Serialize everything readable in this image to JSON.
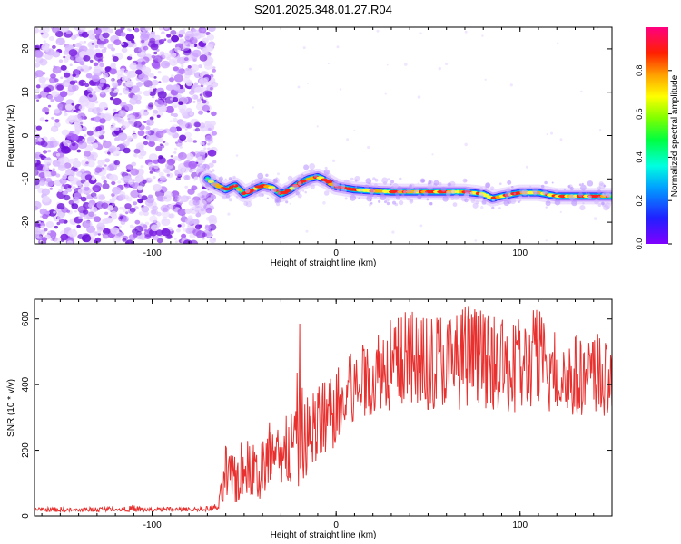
{
  "title": "S201.2025.348.01.27.R04",
  "colors": {
    "snr_line": "#e8312f",
    "ridge_core": "#ff1a1a",
    "noise": "#7a1fe0"
  },
  "chart_data": [
    {
      "type": "heatmap",
      "xlabel": "Height of straight line (km)",
      "ylabel": "Frequency (Hz)",
      "xlim": [
        -164,
        150
      ],
      "ylim": [
        -25,
        25
      ],
      "x_ticks": [
        -100,
        0,
        100
      ],
      "y_ticks": [
        -20,
        -10,
        0,
        10,
        20
      ],
      "grid": false,
      "colorbar": {
        "label": "Normalized spectral amplitude",
        "range": [
          0,
          1
        ],
        "ticks": [
          0.0,
          0.2,
          0.4,
          0.6,
          0.8
        ],
        "colormap": "rainbow (blue, cyan, green, yellow, red, magenta)"
      },
      "noise_region_x": [
        -164,
        -70
      ],
      "ridge": {
        "x": [
          -70,
          -65,
          -60,
          -55,
          -50,
          -45,
          -40,
          -35,
          -30,
          -25,
          -20,
          -15,
          -10,
          -5,
          0,
          10,
          20,
          30,
          40,
          50,
          60,
          70,
          80,
          85,
          90,
          100,
          110,
          120,
          130,
          140,
          150
        ],
        "y": [
          -10.0,
          -11.5,
          -12.5,
          -11.5,
          -13.5,
          -12.5,
          -11.5,
          -12.0,
          -13.5,
          -12.5,
          -11.0,
          -10.0,
          -9.5,
          -10.5,
          -11.8,
          -12.5,
          -12.8,
          -13.0,
          -13.0,
          -13.0,
          -13.0,
          -13.0,
          -13.5,
          -14.5,
          -14.0,
          -13.2,
          -13.2,
          -14.0,
          -14.0,
          -14.0,
          -14.0
        ]
      }
    },
    {
      "type": "line",
      "xlabel": "Height of straight line (km)",
      "ylabel": "SNR (10 * v/v)",
      "xlim": [
        -164,
        150
      ],
      "ylim": [
        0,
        660
      ],
      "x_ticks": [
        -100,
        0,
        100
      ],
      "y_ticks": [
        0,
        200,
        400,
        600
      ],
      "grid": false,
      "series": [
        {
          "x": [
            -164,
            -150,
            -140,
            -130,
            -120,
            -110,
            -100,
            -90,
            -80,
            -70,
            -64,
            -60,
            -57,
            -54,
            -50,
            -46,
            -42,
            -38,
            -34,
            -30,
            -26,
            -22,
            -20,
            -18,
            -14,
            -10,
            -6,
            -2,
            0,
            4,
            8,
            12,
            16,
            20,
            25,
            30,
            35,
            40,
            45,
            50,
            55,
            60,
            65,
            70,
            75,
            80,
            85,
            90,
            95,
            100,
            105,
            110,
            115,
            120,
            125,
            130,
            135,
            140,
            145,
            150
          ],
          "low": [
            15,
            12,
            14,
            12,
            16,
            12,
            14,
            13,
            15,
            14,
            18,
            40,
            60,
            30,
            70,
            60,
            40,
            80,
            90,
            60,
            100,
            90,
            80,
            110,
            140,
            160,
            180,
            200,
            220,
            240,
            270,
            290,
            300,
            310,
            330,
            320,
            340,
            330,
            330,
            320,
            330,
            340,
            320,
            330,
            320,
            330,
            320,
            330,
            310,
            320,
            330,
            320,
            310,
            320,
            320,
            300,
            310,
            300,
            300,
            290
          ],
          "high": [
            25,
            28,
            22,
            30,
            26,
            32,
            24,
            28,
            26,
            30,
            40,
            230,
            180,
            250,
            220,
            260,
            200,
            280,
            300,
            260,
            330,
            320,
            620,
            360,
            380,
            400,
            430,
            440,
            450,
            480,
            500,
            530,
            540,
            570,
            600,
            610,
            620,
            630,
            610,
            620,
            640,
            630,
            620,
            650,
            640,
            620,
            610,
            600,
            590,
            610,
            620,
            650,
            600,
            580,
            570,
            560,
            550,
            560,
            550,
            520
          ]
        }
      ]
    }
  ]
}
